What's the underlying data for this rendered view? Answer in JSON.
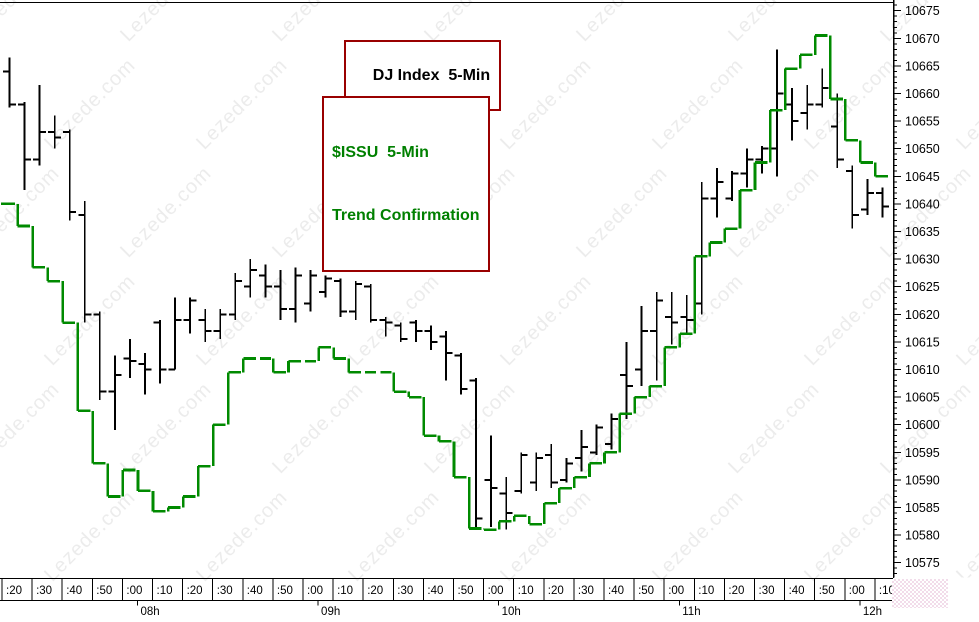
{
  "titles": {
    "main_box": "DJ Index  5-Min",
    "indicator_box_line1": "$ISSU  5-Min",
    "indicator_box_line2": "Trend Confirmation"
  },
  "watermark": {
    "text": "Lezede.com",
    "color": "#ECECEC"
  },
  "colors": {
    "background": "#FFFFFF",
    "dj_series": "#000000",
    "issu_series": "#008A00",
    "title_main_text": "#000000",
    "title_indicator_text": "#008000",
    "box_border": "#990000",
    "axis": "#000000",
    "corner_widget": "#F2DCEA"
  },
  "chart_data": {
    "type": "bar",
    "subtype": "ohlc-bars-with-step-line",
    "title": "DJ Index 5-Min",
    "legend": [
      "DJ Index  5-Min",
      "$ISSU  5-Min Trend Confirmation"
    ],
    "grid": false,
    "y_axis": {
      "side": "right",
      "min": 10575,
      "max": 10675,
      "major_tick": 5,
      "minor_tick": 1,
      "labels": [
        10675,
        10670,
        10665,
        10660,
        10655,
        10650,
        10645,
        10640,
        10635,
        10630,
        10625,
        10620,
        10615,
        10610,
        10605,
        10600,
        10595,
        10590,
        10585,
        10580,
        10575
      ]
    },
    "x_axis": {
      "minute_cells": [
        ":20",
        ":30",
        ":40",
        ":50",
        ":00",
        ":10",
        ":20",
        ":30",
        ":40",
        ":50",
        ":00",
        ":10",
        ":20",
        ":30",
        ":40",
        ":50",
        ":00",
        ":10",
        ":20",
        ":30",
        ":40",
        ":50",
        ":00",
        ":10",
        ":20",
        ":30",
        ":40",
        ":50",
        ":00",
        ":10"
      ],
      "hour_labels": [
        "08h",
        "09h",
        "10h",
        "11h",
        "12h"
      ]
    },
    "series": [
      {
        "name": "DJ Index 5-Min",
        "type": "ohlc",
        "color": "#000000",
        "start_time": "07:20",
        "interval_minutes": 5,
        "bars_ohlc": [
          [
            10664,
            10666.5,
            10657.5,
            10658
          ],
          [
            10658,
            10658.5,
            10642.5,
            10648
          ],
          [
            10648,
            10661.5,
            10647,
            10653
          ],
          [
            10653,
            10656,
            10650,
            10652
          ],
          [
            10653,
            10653.5,
            10637,
            10638.5
          ],
          [
            10638,
            10640.5,
            10618.5,
            10620
          ],
          [
            10620,
            10620.5,
            10604.5,
            10606
          ],
          [
            10606,
            10612.5,
            10599,
            10609
          ],
          [
            10612,
            10615.5,
            10608.5,
            10611.5
          ],
          [
            10611,
            10613,
            10605.5,
            10610
          ],
          [
            10618.5,
            10619,
            10607.5,
            10610
          ],
          [
            10610,
            10623,
            10610,
            10619
          ],
          [
            10619,
            10623,
            10616.5,
            10622.5
          ],
          [
            10619,
            10621,
            10615,
            10617
          ],
          [
            10617,
            10621,
            10615.5,
            10620
          ],
          [
            10620,
            10627.5,
            10619,
            10626
          ],
          [
            10625,
            10630,
            10623,
            10628
          ],
          [
            10627,
            10629,
            10623,
            10625
          ],
          [
            10625,
            10628,
            10619,
            10621
          ],
          [
            10621,
            10628.5,
            10618.5,
            10627
          ],
          [
            10622,
            10628,
            10620.5,
            10627
          ],
          [
            10624,
            10627,
            10623,
            10626.5
          ],
          [
            10626,
            10626.5,
            10619.5,
            10620.5
          ],
          [
            10620.5,
            10626,
            10619,
            10625.5
          ],
          [
            10625,
            10625.5,
            10618.5,
            10619
          ],
          [
            10619,
            10619.5,
            10616,
            10618.5
          ],
          [
            10618,
            10618.5,
            10615,
            10615.5
          ],
          [
            10618.5,
            10619,
            10615,
            10617
          ],
          [
            10617,
            10618,
            10613.5,
            10615
          ],
          [
            10616,
            10617,
            10608,
            10613
          ],
          [
            10612.5,
            10613,
            10605.5,
            10606.5
          ],
          [
            10608,
            10608.5,
            10581.5,
            10583
          ],
          [
            10590,
            10598,
            10581.5,
            10588.5
          ],
          [
            10587.5,
            10590.5,
            10581,
            10584
          ],
          [
            10588,
            10595,
            10587.5,
            10594.5
          ],
          [
            10589.5,
            10595,
            10588,
            10594
          ],
          [
            10594.5,
            10596.5,
            10588.5,
            10589.5
          ],
          [
            10590,
            10594,
            10589.5,
            10593
          ],
          [
            10594,
            10599,
            10591.5,
            10596
          ],
          [
            10595,
            10600,
            10594.5,
            10599.5
          ],
          [
            10596.5,
            10602,
            10595.5,
            10601
          ],
          [
            10609,
            10615,
            10601,
            10607
          ],
          [
            10610,
            10621.5,
            10607,
            10617
          ],
          [
            10617,
            10624,
            10608,
            10622.5
          ],
          [
            10619.5,
            10624,
            10614.5,
            10618.5
          ],
          [
            10619.5,
            10623.5,
            10616.5,
            10619
          ],
          [
            10622,
            10644,
            10620,
            10641
          ],
          [
            10641,
            10646.5,
            10637.5,
            10644
          ],
          [
            10641,
            10646,
            10640.5,
            10645.5
          ],
          [
            10645.5,
            10650,
            10643,
            10648
          ],
          [
            10648,
            10650.5,
            10645.5,
            10650
          ],
          [
            10650,
            10668,
            10645,
            10660
          ],
          [
            10658,
            10661,
            10651.5,
            10655
          ],
          [
            10656.5,
            10661.5,
            10653.5,
            10658
          ],
          [
            10658,
            10664.5,
            10657.5,
            10661
          ],
          [
            10654,
            10660,
            10646.5,
            10648
          ],
          [
            10646,
            10647,
            10635.5,
            10638
          ],
          [
            10639,
            10644.5,
            10638,
            10642
          ],
          [
            10642,
            10643,
            10637.5,
            10639.5
          ]
        ]
      },
      {
        "name": "$ISSU 5-Min Trend Confirmation",
        "type": "step-line",
        "color": "#008A00",
        "values": [
          10640,
          10636,
          10628.5,
          10626,
          10618.5,
          10602.5,
          10593,
          10587,
          10591.8,
          10588,
          10584.3,
          10585,
          10587,
          10592.5,
          10600,
          10609.5,
          10612,
          10612,
          10609.5,
          10611.5,
          10611.5,
          10614,
          10612,
          10609.5,
          10609.5,
          10609.5,
          10606,
          10605,
          10598,
          10597,
          10590.5,
          10581.2,
          10581,
          10582.5,
          10583.5,
          10582,
          10585.8,
          10588.5,
          10590.5,
          10593,
          10595,
          10602,
          10605,
          10607,
          10614,
          10616.5,
          10630.5,
          10633,
          10635.5,
          10642.5,
          10647.5,
          10657,
          10664.5,
          10667,
          10670.5,
          10659,
          10651.5,
          10647.5,
          10645
        ]
      }
    ]
  }
}
